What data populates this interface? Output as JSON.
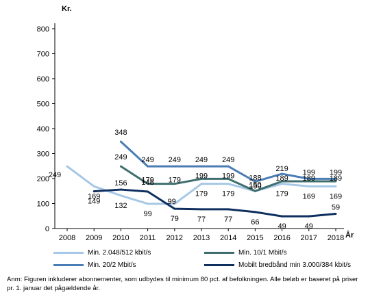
{
  "chart_data": {
    "type": "line",
    "ylabel": "Kr.",
    "xlabel": "År",
    "ylim": [
      0,
      800
    ],
    "yticks": [
      0,
      100,
      200,
      300,
      400,
      500,
      600,
      700,
      800
    ],
    "x": [
      "2008",
      "2009",
      "2010",
      "2011",
      "2012",
      "2013",
      "2014",
      "2015",
      "2016",
      "2017",
      "2018"
    ],
    "series": [
      {
        "name": "Min. 2.048/512 kbit/s",
        "color": "#a6c8e6",
        "values": [
          249,
          169,
          132,
          99,
          99,
          179,
          179,
          150,
          179,
          169,
          169
        ]
      },
      {
        "name": "Min. 10/1 Mbit/s",
        "color": "#3f6e6e",
        "values": [
          null,
          null,
          249,
          179,
          179,
          199,
          199,
          150,
          189,
          189,
          189
        ]
      },
      {
        "name": "Min. 20/2 Mbit/s",
        "color": "#4a7db5",
        "values": [
          null,
          null,
          348,
          249,
          249,
          249,
          249,
          188,
          219,
          199,
          199
        ]
      },
      {
        "name": "Mobilt bredbånd min 3.000/384 kbit/s",
        "color": "#0f2f5f",
        "values": [
          null,
          149,
          156,
          148,
          79,
          77,
          77,
          66,
          49,
          49,
          59
        ]
      }
    ],
    "legend_position": "bottom",
    "grid": false
  },
  "note": "Anm: Figuren inkluderer abonnementer, som udbydes til minimum 80 pct. af befolkningen. Alle beløb er baseret på priser pr. 1. januar det pågældende år."
}
